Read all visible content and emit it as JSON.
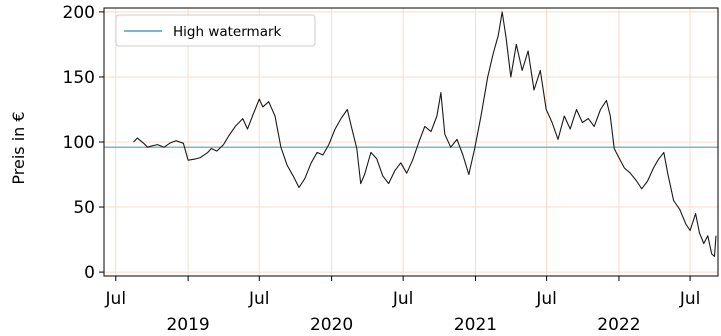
{
  "chart_data": {
    "type": "line",
    "ylabel": "Preis in €",
    "xlabel": "",
    "xlim": [
      "2018-06-01",
      "2022-09-10"
    ],
    "ylim": [
      -3,
      203
    ],
    "grid": true,
    "grid_color": "#f8dcc8",
    "legend_position": "top-left",
    "y_ticks": [
      0,
      50,
      100,
      150,
      200
    ],
    "x_ticks": [
      {
        "date": "2018-07-01",
        "label": "Jul"
      },
      {
        "date": "2019-01-01",
        "label": ""
      },
      {
        "date": "2019-07-01",
        "label": "Jul"
      },
      {
        "date": "2020-01-01",
        "label": ""
      },
      {
        "date": "2020-07-01",
        "label": "Jul"
      },
      {
        "date": "2021-01-01",
        "label": ""
      },
      {
        "date": "2021-07-01",
        "label": "Jul"
      },
      {
        "date": "2022-01-01",
        "label": ""
      },
      {
        "date": "2022-07-01",
        "label": "Jul"
      }
    ],
    "year_labels": [
      {
        "date": "2019-01-01",
        "label": "2019"
      },
      {
        "date": "2020-01-01",
        "label": "2020"
      },
      {
        "date": "2021-01-01",
        "label": "2021"
      },
      {
        "date": "2022-01-01",
        "label": "2022"
      }
    ],
    "series": [
      {
        "name": "",
        "color": "#1a1a1a",
        "points": [
          [
            "2018-08-15",
            100
          ],
          [
            "2018-08-25",
            103
          ],
          [
            "2018-09-10",
            99
          ],
          [
            "2018-09-20",
            96
          ],
          [
            "2018-10-01",
            97
          ],
          [
            "2018-10-15",
            98
          ],
          [
            "2018-11-01",
            96
          ],
          [
            "2018-11-15",
            99
          ],
          [
            "2018-12-01",
            101
          ],
          [
            "2018-12-20",
            99
          ],
          [
            "2019-01-01",
            86
          ],
          [
            "2019-01-20",
            87
          ],
          [
            "2019-02-01",
            88
          ],
          [
            "2019-02-20",
            92
          ],
          [
            "2019-03-01",
            95
          ],
          [
            "2019-03-15",
            93
          ],
          [
            "2019-04-01",
            98
          ],
          [
            "2019-04-15",
            105
          ],
          [
            "2019-05-01",
            112
          ],
          [
            "2019-05-20",
            118
          ],
          [
            "2019-06-01",
            110
          ],
          [
            "2019-06-15",
            121
          ],
          [
            "2019-07-01",
            133
          ],
          [
            "2019-07-10",
            127
          ],
          [
            "2019-07-25",
            131
          ],
          [
            "2019-08-10",
            120
          ],
          [
            "2019-08-25",
            96
          ],
          [
            "2019-09-10",
            82
          ],
          [
            "2019-09-25",
            74
          ],
          [
            "2019-10-10",
            65
          ],
          [
            "2019-10-25",
            72
          ],
          [
            "2019-11-10",
            84
          ],
          [
            "2019-11-25",
            92
          ],
          [
            "2019-12-10",
            90
          ],
          [
            "2019-12-25",
            98
          ],
          [
            "2020-01-10",
            110
          ],
          [
            "2020-01-25",
            118
          ],
          [
            "2020-02-10",
            125
          ],
          [
            "2020-02-20",
            112
          ],
          [
            "2020-03-05",
            95
          ],
          [
            "2020-03-15",
            68
          ],
          [
            "2020-03-25",
            75
          ],
          [
            "2020-04-10",
            92
          ],
          [
            "2020-04-25",
            87
          ],
          [
            "2020-05-10",
            74
          ],
          [
            "2020-05-25",
            68
          ],
          [
            "2020-06-10",
            78
          ],
          [
            "2020-06-25",
            84
          ],
          [
            "2020-07-10",
            76
          ],
          [
            "2020-07-25",
            86
          ],
          [
            "2020-08-10",
            100
          ],
          [
            "2020-08-25",
            112
          ],
          [
            "2020-09-10",
            108
          ],
          [
            "2020-09-25",
            120
          ],
          [
            "2020-10-05",
            138
          ],
          [
            "2020-10-15",
            106
          ],
          [
            "2020-10-30",
            96
          ],
          [
            "2020-11-15",
            102
          ],
          [
            "2020-11-30",
            90
          ],
          [
            "2020-12-15",
            75
          ],
          [
            "2020-12-30",
            95
          ],
          [
            "2021-01-15",
            120
          ],
          [
            "2021-02-01",
            150
          ],
          [
            "2021-02-15",
            168
          ],
          [
            "2021-02-28",
            182
          ],
          [
            "2021-03-10",
            200
          ],
          [
            "2021-03-20",
            180
          ],
          [
            "2021-04-01",
            150
          ],
          [
            "2021-04-15",
            175
          ],
          [
            "2021-04-30",
            155
          ],
          [
            "2021-05-15",
            170
          ],
          [
            "2021-05-30",
            140
          ],
          [
            "2021-06-15",
            155
          ],
          [
            "2021-06-30",
            125
          ],
          [
            "2021-07-15",
            115
          ],
          [
            "2021-07-30",
            102
          ],
          [
            "2021-08-15",
            120
          ],
          [
            "2021-08-30",
            110
          ],
          [
            "2021-09-15",
            125
          ],
          [
            "2021-09-30",
            115
          ],
          [
            "2021-10-15",
            118
          ],
          [
            "2021-10-30",
            112
          ],
          [
            "2021-11-15",
            125
          ],
          [
            "2021-11-30",
            132
          ],
          [
            "2021-12-10",
            120
          ],
          [
            "2021-12-20",
            95
          ],
          [
            "2022-01-01",
            88
          ],
          [
            "2022-01-15",
            80
          ],
          [
            "2022-01-30",
            76
          ],
          [
            "2022-02-15",
            70
          ],
          [
            "2022-02-28",
            64
          ],
          [
            "2022-03-15",
            70
          ],
          [
            "2022-03-30",
            80
          ],
          [
            "2022-04-10",
            86
          ],
          [
            "2022-04-25",
            92
          ],
          [
            "2022-05-05",
            76
          ],
          [
            "2022-05-20",
            55
          ],
          [
            "2022-06-05",
            48
          ],
          [
            "2022-06-20",
            37
          ],
          [
            "2022-07-01",
            32
          ],
          [
            "2022-07-15",
            45
          ],
          [
            "2022-07-25",
            30
          ],
          [
            "2022-08-05",
            22
          ],
          [
            "2022-08-15",
            28
          ],
          [
            "2022-08-25",
            14
          ],
          [
            "2022-09-01",
            12
          ],
          [
            "2022-09-05",
            28
          ]
        ]
      },
      {
        "name": "High watermark",
        "color": "#4aa3c0",
        "type": "hline",
        "value": 96
      }
    ]
  }
}
